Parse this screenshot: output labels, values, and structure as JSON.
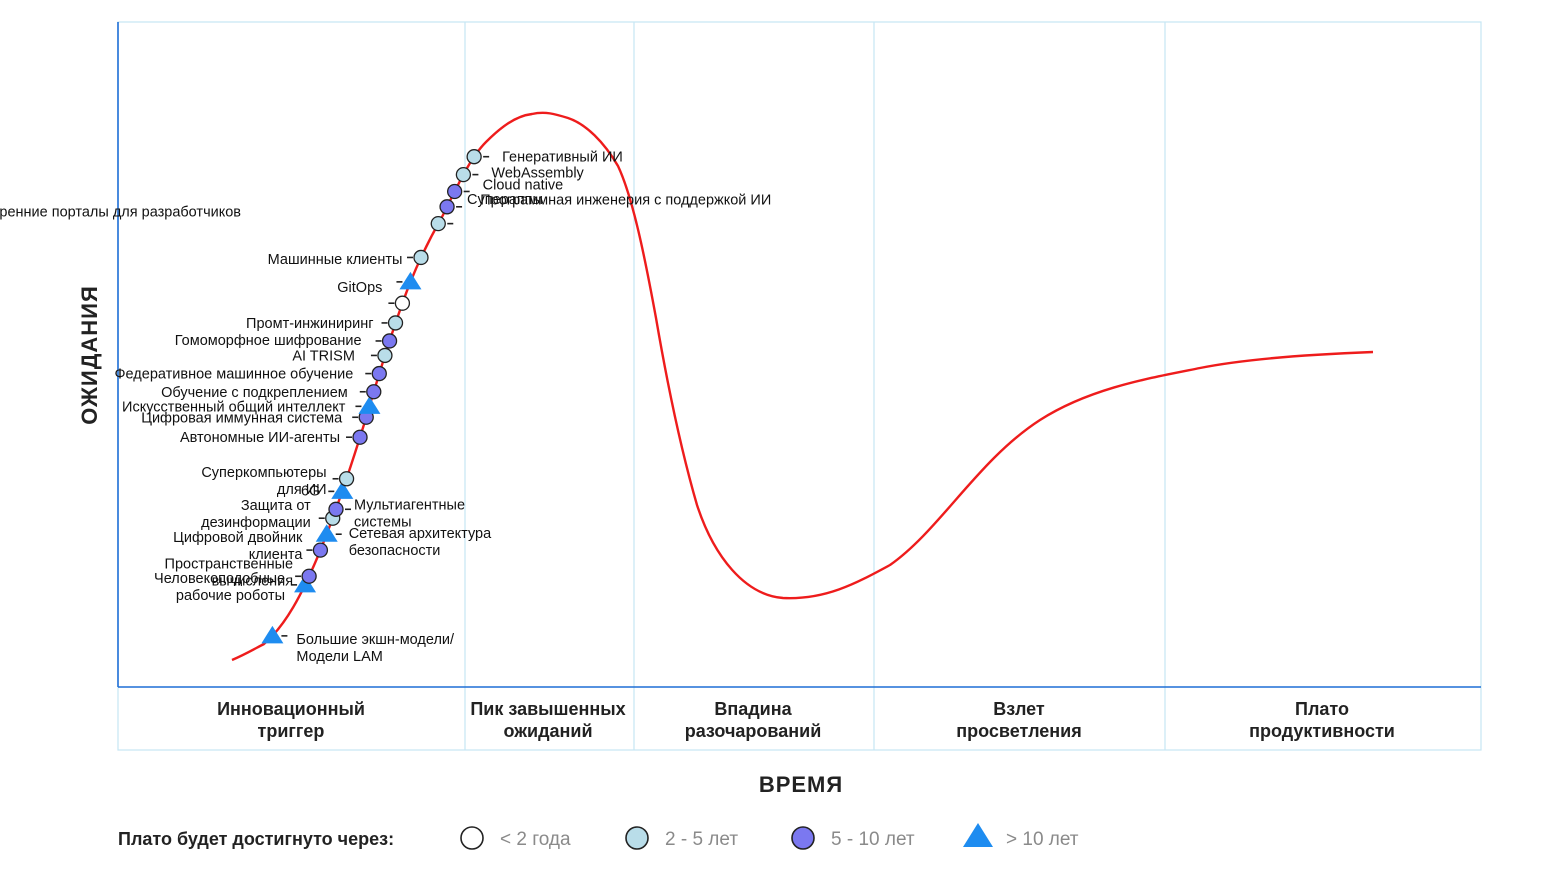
{
  "chart_data": {
    "type": "line",
    "curve_name": "",
    "xlabel": "ВРЕМЯ",
    "ylabel": "ОЖИДАНИЯ",
    "phases": [
      {
        "id": "trigger",
        "lines": [
          "Инновационный",
          "триггер"
        ]
      },
      {
        "id": "peak",
        "lines": [
          "Пик завышенных",
          "ожиданий"
        ]
      },
      {
        "id": "trough",
        "lines": [
          "Впадина",
          "разочарований"
        ]
      },
      {
        "id": "slope",
        "lines": [
          "Взлет",
          "просветления"
        ]
      },
      {
        "id": "plateau",
        "lines": [
          "Плато",
          "продуктивности"
        ]
      }
    ],
    "legend": {
      "title": "Плато будет достигнуто через:",
      "items": [
        {
          "id": "lt2",
          "label": "< 2 года",
          "marker": "circle",
          "fill": "#ffffff"
        },
        {
          "id": "2to5",
          "label": "2 - 5 лет",
          "marker": "circle",
          "fill": "#b9dde9"
        },
        {
          "id": "5to10",
          "label": "5 - 10 лет",
          "marker": "circle",
          "fill": "#7b78f0"
        },
        {
          "id": "gt10",
          "label": "> 10 лет",
          "marker": "triangle",
          "fill": "#1e8cf0"
        }
      ]
    },
    "technologies": [
      {
        "lines": [
          "Большие экшн-модели/",
          "Модели LAM"
        ],
        "category": "gt10",
        "t": 0.025
      },
      {
        "lines": [
          "Человекоподобные",
          "рабочие роботы"
        ],
        "category": "gt10",
        "t": 0.057
      },
      {
        "lines": [
          "Пространственные",
          "вычисления"
        ],
        "category": "5to10",
        "t": 0.062
      },
      {
        "lines": [
          "Цифровой двойник",
          "клиента"
        ],
        "category": "5to10",
        "t": 0.077
      },
      {
        "lines": [
          "Сетевая архитектура",
          "безопасности"
        ],
        "category": "gt10",
        "t": 0.086
      },
      {
        "lines": [
          "Защита от",
          "дезинформации"
        ],
        "category": "2to5",
        "t": 0.095
      },
      {
        "lines": [
          "Мультиагентные",
          "системы"
        ],
        "category": "5to10",
        "t": 0.1
      },
      {
        "lines": [
          "6G"
        ],
        "category": "gt10",
        "t": 0.11
      },
      {
        "lines": [
          "Суперкомпьютеры",
          "для ИИ"
        ],
        "category": "2to5",
        "t": 0.117
      },
      {
        "lines": [
          "Автономные ИИ-агенты"
        ],
        "category": "5to10",
        "t": 0.14
      },
      {
        "lines": [
          "Цифровая иммунная система"
        ],
        "category": "5to10",
        "t": 0.151
      },
      {
        "lines": [
          "Искусственный общий интеллект"
        ],
        "category": "gt10",
        "t": 0.157
      },
      {
        "lines": [
          "Обучение с подкреплением"
        ],
        "category": "5to10",
        "t": 0.165
      },
      {
        "lines": [
          "Федеративное машинное обучение"
        ],
        "category": "5to10",
        "t": 0.175
      },
      {
        "lines": [
          "AI TRISM"
        ],
        "category": "2to5",
        "t": 0.185
      },
      {
        "lines": [
          "Гомоморфное шифрование"
        ],
        "category": "5to10",
        "t": 0.193
      },
      {
        "lines": [
          "Промт-инжиниринг"
        ],
        "category": "2to5",
        "t": 0.203
      },
      {
        "lines": [
          "GitOps"
        ],
        "category": "lt2",
        "t": 0.214
      },
      {
        "lines": [
          "Машинные клиенты"
        ],
        "category": "gt10",
        "t": 0.226
      },
      {
        "lines": [
          "Внутренние порталы для разработчиков"
        ],
        "category": "2to5",
        "t": 0.24
      },
      {
        "lines": [
          "Программная инженерия с поддержкой ИИ"
        ],
        "category": "2to5",
        "t": 0.26
      },
      {
        "lines": [
          "Супераппы"
        ],
        "category": "5to10",
        "t": 0.27
      },
      {
        "lines": [
          "Cloud native"
        ],
        "category": "5to10",
        "t": 0.279
      },
      {
        "lines": [
          "WebAssembly"
        ],
        "category": "2to5",
        "t": 0.289
      },
      {
        "lines": [
          "Генеративный ИИ"
        ],
        "category": "2to5",
        "t": 0.3
      }
    ]
  },
  "colors": {
    "curve": "#ee1c1c",
    "grid": "#c6e6f4",
    "axis": "#1f6fd6",
    "marker_stroke": "#222222"
  }
}
